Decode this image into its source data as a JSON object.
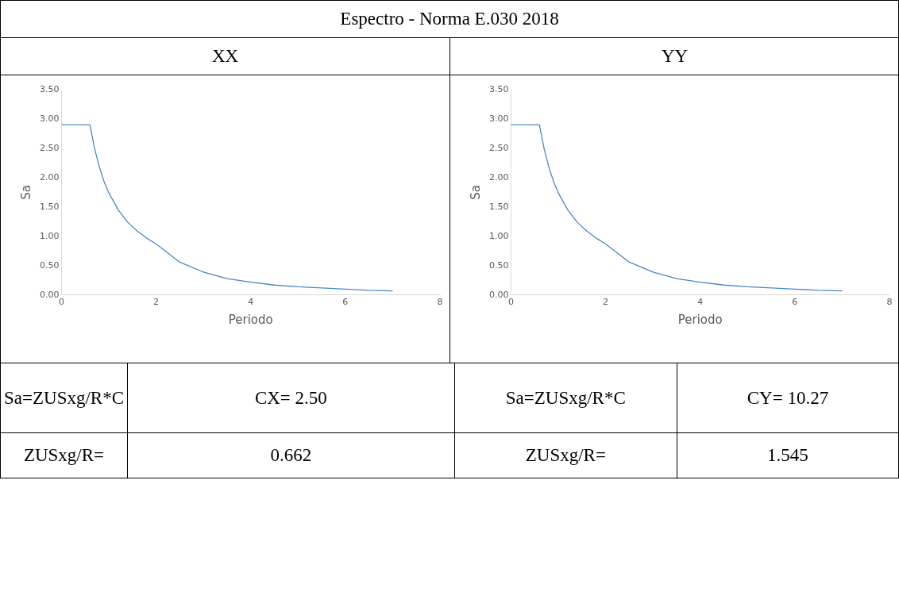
{
  "chart_data": [
    {
      "type": "other",
      "title": "Espectro - Norma E.030 2018"
    },
    {
      "type": "line",
      "title": "XX",
      "xlabel": "Periodo",
      "ylabel": "Sa",
      "x": [
        0,
        0.6,
        0.7,
        0.8,
        0.9,
        1,
        1.2,
        1.4,
        1.6,
        1.8,
        2,
        2.5,
        3,
        3.5,
        4,
        4.5,
        5,
        5.5,
        6,
        6.5,
        7
      ],
      "series": [
        {
          "color": "#4a86c8",
          "values": [
            2.9,
            2.9,
            2.49,
            2.18,
            1.93,
            1.74,
            1.45,
            1.24,
            1.09,
            0.97,
            0.87,
            0.56,
            0.39,
            0.28,
            0.22,
            0.17,
            0.14,
            0.12,
            0.1,
            0.08,
            0.07
          ]
        }
      ],
      "xlim": [
        0,
        8
      ],
      "xticks": [
        0,
        2,
        4,
        6,
        8
      ],
      "ylim": [
        0,
        3.5
      ],
      "yticks": [
        {
          "value": 0,
          "label": "0.00"
        },
        {
          "value": 0.5,
          "label": "0.50"
        },
        {
          "value": 1,
          "label": "1.00"
        },
        {
          "value": 1.5,
          "label": "1.50"
        },
        {
          "value": 2,
          "label": "2.00"
        },
        {
          "value": 2.5,
          "label": "2.50"
        },
        {
          "value": 3,
          "label": "3.00"
        },
        {
          "value": 3.5,
          "label": "3.50"
        }
      ],
      "grid": false,
      "legend": false,
      "marker": "none"
    },
    {
      "type": "line",
      "title": "YY",
      "xlabel": "Periodo",
      "ylabel": "Sa",
      "x": [
        0,
        0.6,
        0.7,
        0.8,
        0.9,
        1,
        1.2,
        1.4,
        1.6,
        1.8,
        2,
        2.5,
        3,
        3.5,
        4,
        4.5,
        5,
        5.5,
        6,
        6.5,
        7
      ],
      "series": [
        {
          "color": "#4a86c8",
          "values": [
            2.9,
            2.9,
            2.49,
            2.18,
            1.93,
            1.74,
            1.45,
            1.24,
            1.09,
            0.97,
            0.87,
            0.56,
            0.39,
            0.28,
            0.22,
            0.17,
            0.14,
            0.12,
            0.1,
            0.08,
            0.07
          ]
        }
      ],
      "xlim": [
        0,
        8
      ],
      "xticks": [
        0,
        2,
        4,
        6,
        8
      ],
      "ylim": [
        0,
        3.5
      ],
      "yticks": [
        {
          "value": 0,
          "label": "0.00"
        },
        {
          "value": 0.5,
          "label": "0.50"
        },
        {
          "value": 1,
          "label": "1.00"
        },
        {
          "value": 1.5,
          "label": "1.50"
        },
        {
          "value": 2,
          "label": "2.00"
        },
        {
          "value": 2.5,
          "label": "2.50"
        },
        {
          "value": 3,
          "label": "3.00"
        },
        {
          "value": 3.5,
          "label": "3.50"
        }
      ],
      "grid": false,
      "legend": false,
      "marker": "none"
    },
    {
      "type": "other",
      "annotations": [
        "Sa=ZUSxg/R*C",
        "CX= 2.50",
        "Sa=ZUSxg/R*C",
        "CY= 10.27",
        "ZUSxg/R=",
        "0.662",
        "ZUSxg/R=",
        "1.545"
      ]
    }
  ]
}
